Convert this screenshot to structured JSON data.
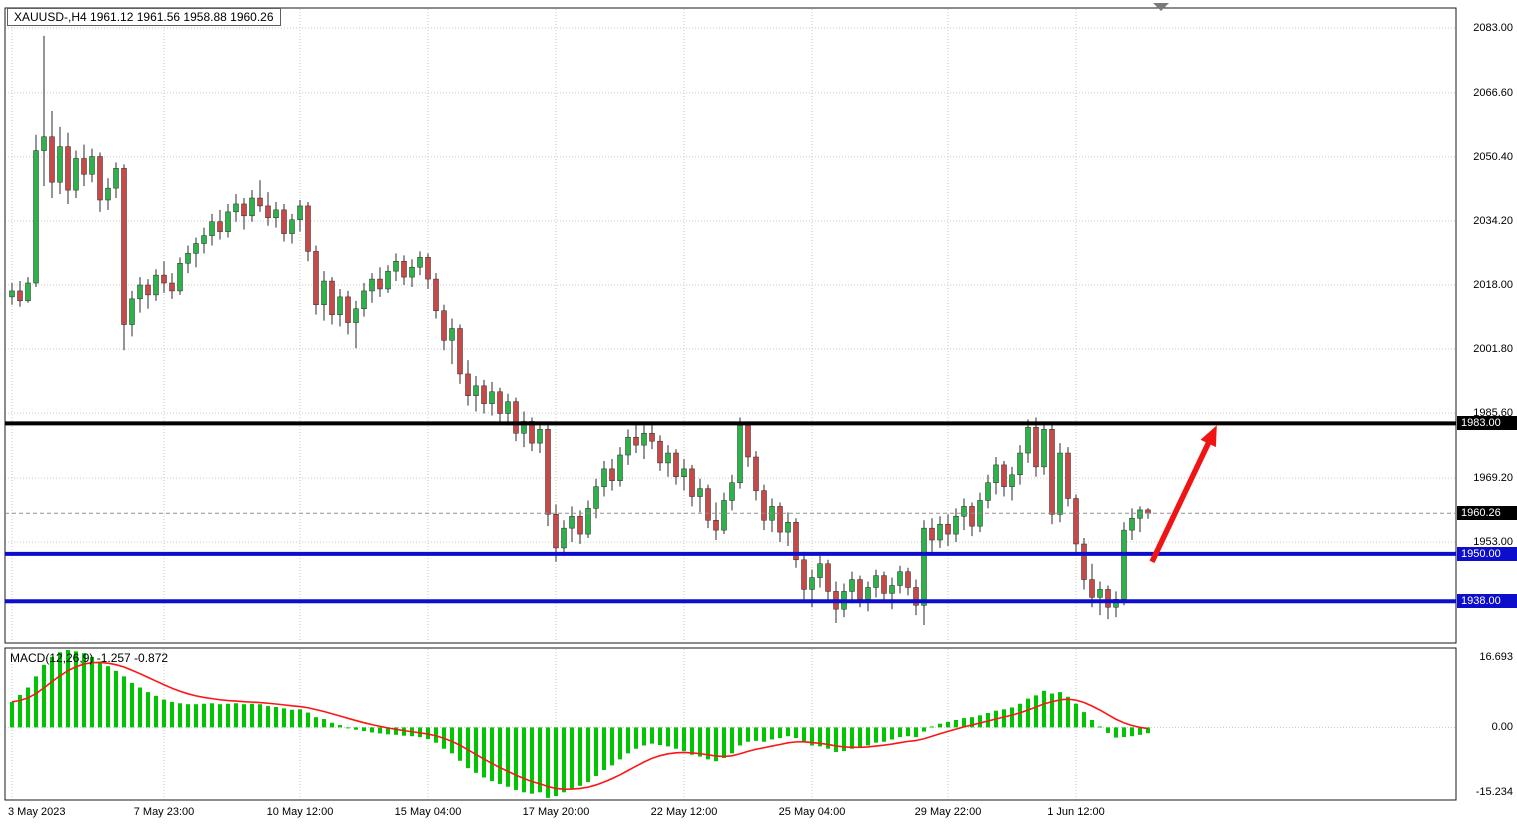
{
  "window": {
    "title_text": "XAUUSD-,H4 1961.12 1961.56 1958.88 1960.26"
  },
  "macd_label_text": "MACD(12,26,9) -1.257 -0.872",
  "chart_data": [
    {
      "type": "candlestick",
      "symbol": "XAUUSD-",
      "timeframe": "H4",
      "last_ohlc": {
        "open": 1961.12,
        "high": 1961.56,
        "low": 1958.88,
        "close": 1960.26
      },
      "y_axis_ticks": [
        "2083.00",
        "2066.60",
        "2050.40",
        "2034.20",
        "2018.00",
        "2001.80",
        "1985.60",
        "1969.20",
        "1953.00"
      ],
      "x_axis_ticks": [
        {
          "label": "3 May 2023",
          "bar": 0
        },
        {
          "label": "7 May 23:00",
          "bar": 19
        },
        {
          "label": "10 May 12:00",
          "bar": 36
        },
        {
          "label": "15 May 04:00",
          "bar": 52
        },
        {
          "label": "17 May 20:00",
          "bar": 68
        },
        {
          "label": "22 May 12:00",
          "bar": 84
        },
        {
          "label": "25 May 04:00",
          "bar": 100
        },
        {
          "label": "29 May 22:00",
          "bar": 117
        },
        {
          "label": "1 Jun 12:00",
          "bar": 133
        }
      ],
      "ylim": [
        1927.5,
        2088.0
      ],
      "price_lines": [
        {
          "price": 1983.0,
          "label": "1983.00",
          "line_color": "#000000",
          "label_bg": "#000000",
          "width": 4
        },
        {
          "price": 1950.0,
          "label": "1950.00",
          "line_color": "#0d0dcc",
          "label_bg": "#0d0dcc",
          "width": 4
        },
        {
          "price": 1938.0,
          "label": "1938.00",
          "line_color": "#0d0dcc",
          "label_bg": "#0d0dcc",
          "width": 4
        }
      ],
      "bid_line": {
        "price": 1960.26,
        "label": "1960.26",
        "line_color": "#909090",
        "label_bg": "#000000"
      },
      "arrow": {
        "from_bar": 142.5,
        "from_price": 1948.0,
        "to_bar": 150.6,
        "to_price": 1982.5,
        "color": "#f01414"
      },
      "colors": {
        "bull": "#2cb34a",
        "bear": "#c94848",
        "wick": "#2b2b2b",
        "grid": "#c9c9c9",
        "border": "#1a1a1a"
      },
      "candles": [
        [
          2015.0,
          2018.5,
          2013.0,
          2016.5
        ],
        [
          2016.5,
          2019.0,
          2012.5,
          2014.0
        ],
        [
          2014.0,
          2020.0,
          2013.5,
          2018.5
        ],
        [
          2018.5,
          2056.0,
          2017.5,
          2052.0
        ],
        [
          2052.0,
          2081.0,
          2043.0,
          2055.5
        ],
        [
          2055.5,
          2062.0,
          2040.0,
          2044.0
        ],
        [
          2044.0,
          2058.0,
          2041.0,
          2053.0
        ],
        [
          2053.0,
          2056.5,
          2038.5,
          2042.0
        ],
        [
          2042.0,
          2052.0,
          2040.0,
          2050.0
        ],
        [
          2050.0,
          2053.5,
          2043.0,
          2046.0
        ],
        [
          2046.0,
          2052.5,
          2044.0,
          2050.5
        ],
        [
          2050.5,
          2051.5,
          2036.5,
          2039.5
        ],
        [
          2039.5,
          2045.0,
          2037.0,
          2042.5
        ],
        [
          2042.5,
          2049.0,
          2040.0,
          2047.5
        ],
        [
          2047.5,
          2048.5,
          2001.5,
          2008.0
        ],
        [
          2008.0,
          2016.5,
          2005.0,
          2014.5
        ],
        [
          2014.5,
          2020.0,
          2011.0,
          2018.0
        ],
        [
          2018.0,
          2019.5,
          2012.0,
          2015.5
        ],
        [
          2015.5,
          2022.0,
          2014.0,
          2020.5
        ],
        [
          2020.5,
          2024.0,
          2016.0,
          2018.5
        ],
        [
          2018.5,
          2021.0,
          2014.5,
          2016.5
        ],
        [
          2016.5,
          2025.0,
          2015.5,
          2023.5
        ],
        [
          2023.5,
          2028.0,
          2021.0,
          2026.0
        ],
        [
          2026.0,
          2030.0,
          2022.5,
          2028.5
        ],
        [
          2028.5,
          2032.5,
          2026.0,
          2030.5
        ],
        [
          2030.5,
          2036.0,
          2028.0,
          2034.0
        ],
        [
          2034.0,
          2037.0,
          2029.5,
          2031.5
        ],
        [
          2031.5,
          2038.5,
          2030.0,
          2036.5
        ],
        [
          2036.5,
          2041.0,
          2034.0,
          2038.5
        ],
        [
          2038.5,
          2040.0,
          2032.0,
          2035.5
        ],
        [
          2035.5,
          2042.0,
          2034.0,
          2040.0
        ],
        [
          2040.0,
          2044.5,
          2036.5,
          2038.0
        ],
        [
          2038.0,
          2041.5,
          2033.0,
          2035.0
        ],
        [
          2035.0,
          2039.0,
          2032.5,
          2037.0
        ],
        [
          2037.0,
          2038.5,
          2029.0,
          2031.0
        ],
        [
          2031.0,
          2036.0,
          2028.5,
          2034.5
        ],
        [
          2034.5,
          2039.5,
          2031.5,
          2038.0
        ],
        [
          2038.0,
          2039.0,
          2024.0,
          2026.5
        ],
        [
          2026.5,
          2028.0,
          2010.5,
          2013.0
        ],
        [
          2013.0,
          2021.5,
          2009.0,
          2019.0
        ],
        [
          2019.0,
          2020.0,
          2008.0,
          2010.5
        ],
        [
          2010.5,
          2017.0,
          2007.5,
          2015.0
        ],
        [
          2015.0,
          2016.5,
          2005.5,
          2008.5
        ],
        [
          2008.5,
          2014.0,
          2002.0,
          2012.0
        ],
        [
          2012.0,
          2018.5,
          2010.0,
          2016.5
        ],
        [
          2016.5,
          2021.0,
          2013.5,
          2019.5
        ],
        [
          2019.5,
          2022.5,
          2015.0,
          2017.0
        ],
        [
          2017.0,
          2023.0,
          2016.0,
          2021.5
        ],
        [
          2021.5,
          2026.0,
          2019.0,
          2024.0
        ],
        [
          2024.0,
          2025.5,
          2018.0,
          2020.0
        ],
        [
          2020.0,
          2024.5,
          2017.5,
          2022.5
        ],
        [
          2022.5,
          2026.5,
          2020.5,
          2025.0
        ],
        [
          2025.0,
          2026.0,
          2017.0,
          2019.5
        ],
        [
          2019.5,
          2021.0,
          2009.5,
          2011.5
        ],
        [
          2011.5,
          2013.0,
          2001.5,
          2004.0
        ],
        [
          2004.0,
          2009.5,
          1998.0,
          2007.0
        ],
        [
          2007.0,
          2008.0,
          1993.0,
          1995.5
        ],
        [
          1995.5,
          1999.0,
          1987.5,
          1990.0
        ],
        [
          1990.0,
          1995.0,
          1986.0,
          1992.5
        ],
        [
          1992.5,
          1994.0,
          1985.5,
          1988.0
        ],
        [
          1988.0,
          1993.5,
          1985.0,
          1991.0
        ],
        [
          1991.0,
          1992.0,
          1983.0,
          1985.5
        ],
        [
          1985.5,
          1990.5,
          1982.5,
          1988.5
        ],
        [
          1988.5,
          1989.5,
          1978.5,
          1980.5
        ],
        [
          1980.5,
          1986.0,
          1977.0,
          1983.5
        ],
        [
          1983.5,
          1984.5,
          1976.0,
          1978.0
        ],
        [
          1978.0,
          1983.0,
          1975.5,
          1981.5
        ],
        [
          1981.5,
          1982.5,
          1957.0,
          1960.0
        ],
        [
          1960.0,
          1962.5,
          1948.0,
          1951.5
        ],
        [
          1951.5,
          1958.5,
          1949.5,
          1956.5
        ],
        [
          1956.5,
          1962.0,
          1953.0,
          1959.5
        ],
        [
          1959.5,
          1961.0,
          1952.5,
          1955.0
        ],
        [
          1955.0,
          1963.5,
          1954.0,
          1961.5
        ],
        [
          1961.5,
          1969.0,
          1959.0,
          1967.0
        ],
        [
          1967.0,
          1973.5,
          1964.5,
          1971.5
        ],
        [
          1971.5,
          1974.0,
          1966.0,
          1968.5
        ],
        [
          1968.5,
          1977.0,
          1967.0,
          1975.0
        ],
        [
          1975.0,
          1981.5,
          1972.5,
          1979.5
        ],
        [
          1979.5,
          1983.0,
          1975.5,
          1977.5
        ],
        [
          1977.5,
          1982.5,
          1974.0,
          1980.5
        ],
        [
          1980.5,
          1983.5,
          1976.5,
          1978.5
        ],
        [
          1978.5,
          1980.0,
          1971.0,
          1973.0
        ],
        [
          1973.0,
          1977.5,
          1969.5,
          1975.5
        ],
        [
          1975.5,
          1976.5,
          1967.5,
          1969.5
        ],
        [
          1969.5,
          1974.0,
          1966.0,
          1971.5
        ],
        [
          1971.5,
          1972.5,
          1962.0,
          1964.5
        ],
        [
          1964.5,
          1969.0,
          1960.5,
          1966.5
        ],
        [
          1966.5,
          1967.5,
          1956.5,
          1958.5
        ],
        [
          1958.5,
          1963.0,
          1953.5,
          1956.0
        ],
        [
          1956.0,
          1965.5,
          1955.0,
          1963.5
        ],
        [
          1963.5,
          1970.0,
          1961.0,
          1968.0
        ],
        [
          1968.0,
          1984.5,
          1966.5,
          1982.5
        ],
        [
          1982.5,
          1983.5,
          1972.0,
          1974.5
        ],
        [
          1974.5,
          1976.0,
          1963.5,
          1966.0
        ],
        [
          1966.0,
          1967.5,
          1956.0,
          1958.5
        ],
        [
          1958.5,
          1964.0,
          1955.5,
          1962.0
        ],
        [
          1962.0,
          1963.0,
          1953.0,
          1955.5
        ],
        [
          1955.5,
          1960.5,
          1952.0,
          1958.0
        ],
        [
          1958.0,
          1959.0,
          1946.5,
          1948.5
        ],
        [
          1948.5,
          1950.5,
          1938.5,
          1941.0
        ],
        [
          1941.0,
          1946.0,
          1936.5,
          1944.0
        ],
        [
          1944.0,
          1949.5,
          1941.5,
          1947.5
        ],
        [
          1947.5,
          1948.5,
          1938.0,
          1940.5
        ],
        [
          1940.5,
          1943.0,
          1932.5,
          1936.0
        ],
        [
          1936.0,
          1942.5,
          1934.0,
          1940.5
        ],
        [
          1940.5,
          1945.5,
          1937.5,
          1943.5
        ],
        [
          1943.5,
          1944.5,
          1936.5,
          1938.5
        ],
        [
          1938.5,
          1943.0,
          1935.5,
          1941.5
        ],
        [
          1941.5,
          1946.0,
          1939.0,
          1944.5
        ],
        [
          1944.5,
          1945.5,
          1938.0,
          1940.0
        ],
        [
          1940.0,
          1944.0,
          1936.0,
          1942.0
        ],
        [
          1942.0,
          1947.0,
          1940.0,
          1945.5
        ],
        [
          1945.5,
          1946.5,
          1939.5,
          1941.5
        ],
        [
          1941.5,
          1943.5,
          1934.5,
          1937.0
        ],
        [
          1937.0,
          1958.5,
          1932.0,
          1956.5
        ],
        [
          1956.5,
          1959.0,
          1950.5,
          1953.5
        ],
        [
          1953.5,
          1959.5,
          1951.5,
          1957.5
        ],
        [
          1957.5,
          1960.0,
          1952.0,
          1955.0
        ],
        [
          1955.0,
          1961.5,
          1953.0,
          1959.5
        ],
        [
          1959.5,
          1964.0,
          1956.0,
          1962.0
        ],
        [
          1962.0,
          1963.0,
          1954.5,
          1957.0
        ],
        [
          1957.0,
          1965.5,
          1955.5,
          1963.5
        ],
        [
          1963.5,
          1970.0,
          1961.5,
          1968.0
        ],
        [
          1968.0,
          1974.5,
          1965.0,
          1972.5
        ],
        [
          1972.5,
          1973.5,
          1964.5,
          1967.0
        ],
        [
          1967.0,
          1972.0,
          1963.5,
          1970.0
        ],
        [
          1970.0,
          1977.5,
          1967.5,
          1975.5
        ],
        [
          1975.5,
          1984.0,
          1973.0,
          1982.0
        ],
        [
          1982.0,
          1984.5,
          1969.5,
          1972.0
        ],
        [
          1972.0,
          1983.5,
          1970.0,
          1981.5
        ],
        [
          1981.5,
          1983.5,
          1957.5,
          1960.0
        ],
        [
          1960.0,
          1978.0,
          1958.0,
          1975.5
        ],
        [
          1975.5,
          1977.0,
          1962.0,
          1964.0
        ],
        [
          1964.0,
          1965.0,
          1950.0,
          1952.5
        ],
        [
          1952.5,
          1954.0,
          1941.0,
          1943.5
        ],
        [
          1943.5,
          1947.5,
          1936.5,
          1939.0
        ],
        [
          1939.0,
          1943.0,
          1934.5,
          1941.0
        ],
        [
          1941.0,
          1942.0,
          1933.5,
          1936.5
        ],
        [
          1936.5,
          1940.5,
          1934.0,
          1938.5
        ],
        [
          1938.5,
          1958.0,
          1937.0,
          1956.0
        ],
        [
          1956.0,
          1961.5,
          1953.5,
          1959.0
        ],
        [
          1959.0,
          1962.0,
          1955.5,
          1961.12
        ],
        [
          1961.12,
          1961.56,
          1958.88,
          1960.26
        ]
      ]
    },
    {
      "type": "bar",
      "name": "MACD(12,26,9)",
      "macd_value": "-1.257",
      "signal_value": "-0.872",
      "y_axis_ticks": [
        "16.693",
        "0.00",
        "-15.234"
      ],
      "ylim": [
        -15.234,
        16.693
      ],
      "bar_color": "#00c400",
      "signal_color": "#ff1414",
      "values": [
        5.5,
        7.0,
        8.6,
        11.0,
        13.5,
        15.2,
        16.2,
        16.69,
        16.4,
        16.0,
        15.2,
        14.2,
        13.2,
        12.2,
        11.0,
        9.6,
        8.6,
        7.6,
        6.8,
        6.0,
        5.5,
        5.2,
        5.0,
        5.0,
        5.1,
        5.2,
        5.0,
        5.1,
        5.2,
        5.0,
        5.1,
        5.0,
        4.6,
        4.4,
        4.1,
        3.8,
        3.9,
        3.2,
        2.2,
        1.8,
        1.0,
        0.5,
        0.0,
        -0.5,
        -0.8,
        -1.1,
        -1.3,
        -1.5,
        -1.6,
        -1.8,
        -1.9,
        -2.1,
        -2.5,
        -3.3,
        -4.6,
        -5.6,
        -7.2,
        -8.8,
        -9.8,
        -10.8,
        -11.6,
        -12.2,
        -12.8,
        -13.5,
        -14.0,
        -14.3,
        -14.0,
        -15.2,
        -14.8,
        -14.0,
        -13.2,
        -12.6,
        -11.8,
        -10.5,
        -9.2,
        -8.2,
        -6.9,
        -5.6,
        -4.6,
        -3.9,
        -3.5,
        -3.8,
        -4.1,
        -4.6,
        -5.1,
        -5.9,
        -6.3,
        -6.9,
        -7.3,
        -6.6,
        -5.6,
        -3.9,
        -3.1,
        -2.9,
        -3.1,
        -2.6,
        -2.3,
        -1.9,
        -2.3,
        -3.1,
        -3.9,
        -4.1,
        -4.6,
        -5.3,
        -5.1,
        -4.6,
        -4.3,
        -3.9,
        -3.3,
        -3.1,
        -2.6,
        -2.1,
        -1.9,
        -2.1,
        -0.9,
        0.2,
        0.8,
        1.2,
        1.6,
        2.0,
        2.2,
        2.6,
        3.1,
        3.6,
        3.9,
        4.3,
        5.1,
        6.2,
        6.9,
        7.9,
        7.3,
        7.6,
        6.6,
        5.1,
        3.3,
        1.6,
        0.2,
        -1.2,
        -2.2,
        -2.1,
        -1.9,
        -1.6,
        -1.257
      ]
    }
  ]
}
